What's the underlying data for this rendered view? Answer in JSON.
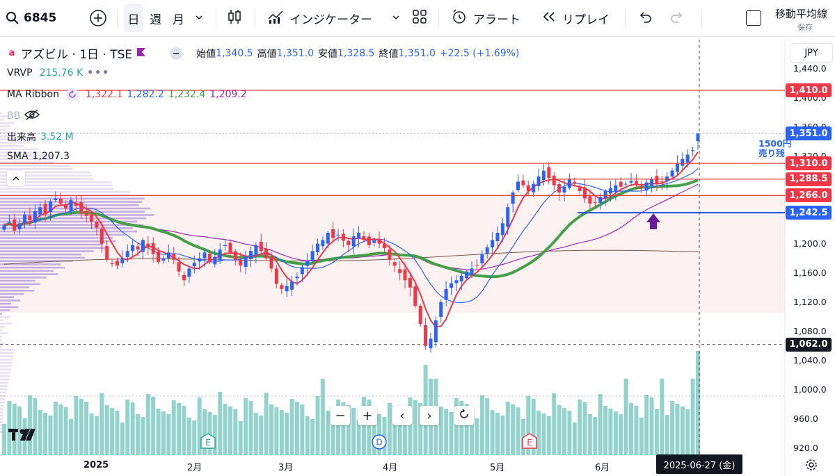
{
  "toolbar": {
    "symbol": "6845",
    "intervals": [
      "日",
      "週",
      "月"
    ],
    "indicators_label": "インジケーター",
    "alert_label": "アラート",
    "replay_label": "リプレイ",
    "layout_name": "移動平均線",
    "save_label": "保存"
  },
  "legend": {
    "title": "アズビル · 1日 · TSE",
    "open_label": "始値",
    "open": "1,340.5",
    "high_label": "高値",
    "high": "1,351.0",
    "low_label": "安値",
    "low": "1,328.5",
    "close_label": "終値",
    "close": "1,351.0",
    "change": "+22.5 (+1.69%)",
    "vrvp_label": "VRVP",
    "vrvp_value": "215.76 K",
    "ma_label": "MA Ribbon",
    "ma_values": [
      "1,322.1",
      "1,282.2",
      "1,232.4",
      "1,209.2"
    ],
    "bb_label": "BB",
    "volume_label": "出来高",
    "volume_value": "3.52 M",
    "sma_label": "SMA",
    "sma_value": "1,207.3",
    "currency": "JPY"
  },
  "annotations": {
    "note_line1": "1500円",
    "note_line2": "売り残"
  },
  "colors": {
    "up": "#2962ff",
    "down": "#f23645",
    "ma1": "#f23645",
    "ma2": "#2962ff",
    "ma3": "#43a047",
    "ma4": "#9c27b0",
    "sma": "#795548",
    "volume": "#80cbc4",
    "hline": "#e53935",
    "support": "#1e4fd8"
  },
  "date_label": "2025-06-27 (金)",
  "chart_data": {
    "type": "candlestick",
    "ylim": [
      900,
      1460
    ],
    "y_ticks": [
      920,
      960,
      1000,
      1040,
      1080,
      1120,
      1160,
      1200,
      1240,
      1280,
      1320,
      1360,
      1400,
      1440
    ],
    "y_tick_labels": [
      "920.0",
      "960.0",
      "1,000.0",
      "1,040.0",
      "1,080.0",
      "1,120.0",
      "1,160.0",
      "1,200.0",
      "",
      "",
      "1,320.0",
      "1,360.0",
      "1,400.0",
      "1,440.0"
    ],
    "x_labels": [
      "2025",
      "2月",
      "3月",
      "4月",
      "5月",
      "6月"
    ],
    "price_levels": [
      {
        "label": "1,410.0",
        "value": 1410,
        "color": "#f23645"
      },
      {
        "label": "1,351.0",
        "value": 1351,
        "color": "#2962ff"
      },
      {
        "label": "1,310.0",
        "value": 1310,
        "color": "#f23645"
      },
      {
        "label": "1,288.5",
        "value": 1288.5,
        "color": "#f23645"
      },
      {
        "label": "1,266.0",
        "value": 1266,
        "color": "#f23645"
      },
      {
        "label": "1,242.5",
        "value": 1242.5,
        "color": "#2962ff"
      },
      {
        "label": "1,062.0",
        "value": 1062,
        "color": "#131722"
      }
    ],
    "events": [
      "E",
      "D",
      "E"
    ],
    "close_series": [
      1225,
      1230,
      1218,
      1228,
      1240,
      1232,
      1245,
      1250,
      1240,
      1258,
      1262,
      1255,
      1248,
      1260,
      1252,
      1242,
      1238,
      1230,
      1222,
      1200,
      1178,
      1172,
      1170,
      1180,
      1190,
      1198,
      1192,
      1205,
      1196,
      1186,
      1175,
      1180,
      1188,
      1178,
      1162,
      1150,
      1166,
      1174,
      1180,
      1188,
      1175,
      1182,
      1192,
      1198,
      1188,
      1178,
      1170,
      1182,
      1190,
      1198,
      1190,
      1180,
      1166,
      1145,
      1138,
      1142,
      1148,
      1155,
      1168,
      1176,
      1190,
      1200,
      1205,
      1215,
      1208,
      1212,
      1204,
      1198,
      1210,
      1215,
      1205,
      1198,
      1205,
      1200,
      1194,
      1178,
      1170,
      1160,
      1150,
      1140,
      1115,
      1090,
      1060,
      1070,
      1095,
      1120,
      1138,
      1146,
      1150,
      1156,
      1162,
      1166,
      1170,
      1185,
      1195,
      1205,
      1215,
      1228,
      1250,
      1270,
      1285,
      1280,
      1272,
      1282,
      1292,
      1300,
      1290,
      1280,
      1270,
      1278,
      1288,
      1282,
      1272,
      1262,
      1255,
      1256,
      1264,
      1272,
      1276,
      1280,
      1278,
      1282,
      1286,
      1280,
      1276,
      1284,
      1288,
      1282,
      1284,
      1292,
      1300,
      1310,
      1316,
      1322,
      1328,
      1351
    ]
  }
}
